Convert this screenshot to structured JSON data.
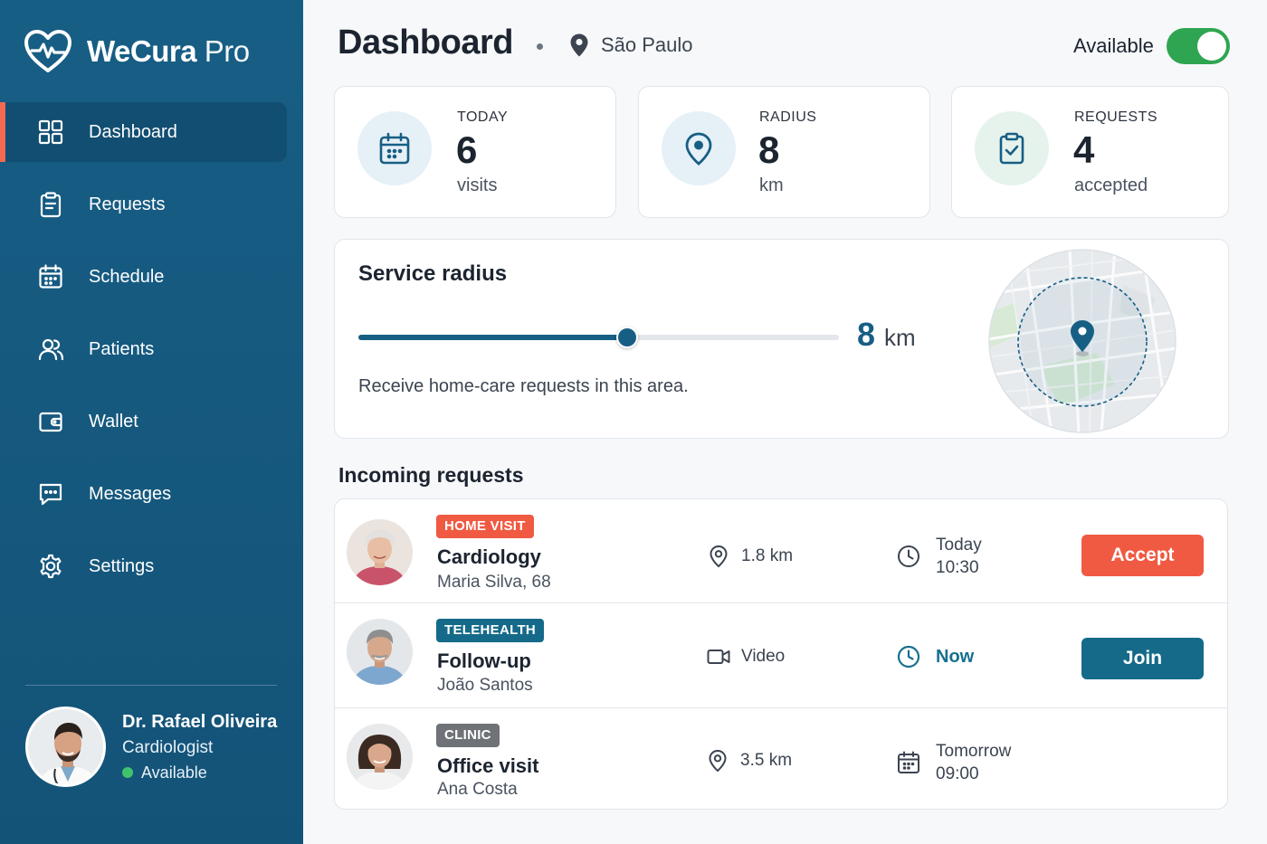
{
  "app": {
    "name": "WeCura",
    "suffix": "Pro"
  },
  "sidebar": {
    "items": [
      {
        "label": "Dashboard",
        "icon": "grid-icon",
        "active": true
      },
      {
        "label": "Requests",
        "icon": "clipboard-icon"
      },
      {
        "label": "Schedule",
        "icon": "calendar-icon"
      },
      {
        "label": "Patients",
        "icon": "users-icon"
      },
      {
        "label": "Wallet",
        "icon": "wallet-icon"
      },
      {
        "label": "Messages",
        "icon": "message-icon"
      },
      {
        "label": "Settings",
        "icon": "gear-icon"
      }
    ],
    "profile": {
      "name": "Dr. Rafael Oliveira",
      "role": "Cardiologist",
      "status": "Available"
    }
  },
  "header": {
    "title": "Dashboard",
    "location": "São Paulo",
    "availability_label": "Available",
    "availability_on": true
  },
  "stats": [
    {
      "label": "TODAY",
      "value": "6",
      "unit": "visits",
      "icon": "calendar-icon"
    },
    {
      "label": "RADIUS",
      "value": "8",
      "unit": "km",
      "icon": "location-pin-icon"
    },
    {
      "label": "REQUESTS",
      "value": "4",
      "unit": "accepted",
      "icon": "clipboard-check-icon"
    }
  ],
  "service_radius": {
    "title": "Service radius",
    "value": "8",
    "unit": "km",
    "slider_fraction": 0.56,
    "description": "Receive home-care requests in this area."
  },
  "requests": {
    "title": "Incoming requests",
    "items": [
      {
        "tag": "HOME VISIT",
        "specialty": "Cardiology",
        "patient": "Maria Silva, 68",
        "info": "1.8 km",
        "info_icon": "location-pin-icon",
        "when_line1": "Today",
        "when_line2": "10:30",
        "when_icon": "clock-icon",
        "action": "Accept"
      },
      {
        "tag": "TELEHEALTH",
        "specialty": "Follow-up",
        "patient": "João Santos",
        "info": "Video",
        "info_icon": "video-icon",
        "when_line1": "Now",
        "when_icon": "clock-icon",
        "action": "Join"
      },
      {
        "tag": "CLINIC",
        "specialty": "Office visit",
        "patient": "Ana Costa",
        "info": "3.5 km",
        "info_icon": "location-pin-icon",
        "when_line1": "Tomorrow",
        "when_line2": "09:00",
        "when_icon": "calendar-icon"
      }
    ]
  },
  "colors": {
    "sidebar": "#175e85",
    "accent": "#f05a42",
    "teal": "#156a8a",
    "toggle_on": "#2fa551"
  }
}
